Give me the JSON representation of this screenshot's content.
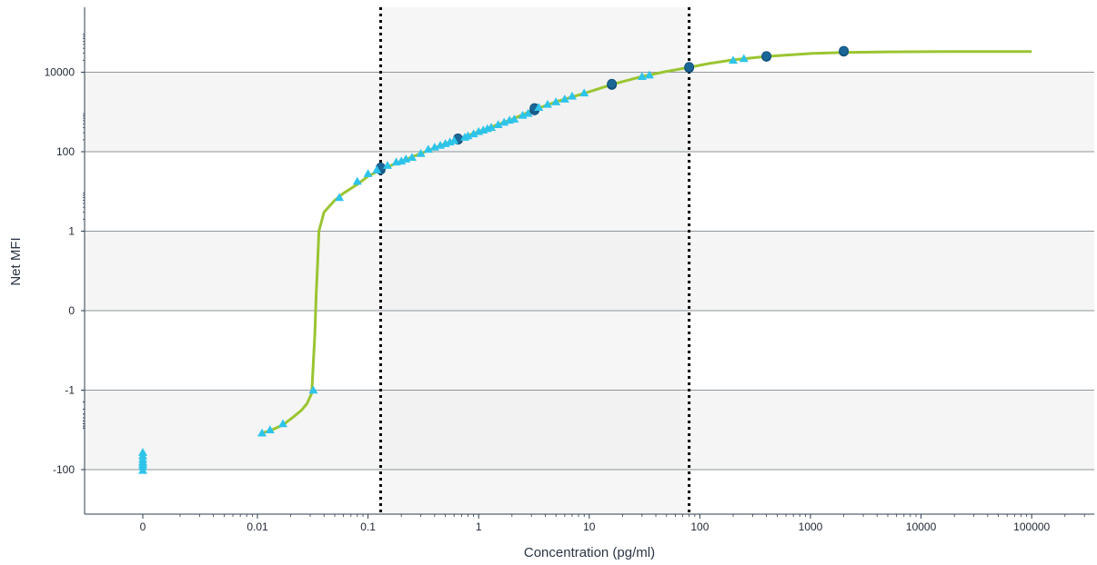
{
  "chart_data": {
    "type": "scatter",
    "title": "",
    "xlabel": "Concentration (pg/ml)",
    "ylabel": "Net MFI",
    "x_scale": "log",
    "y_scale": "symmetric-log",
    "x_tick_labels": [
      "0",
      "0.01",
      "0.1",
      "1",
      "10",
      "100",
      "1000",
      "10000",
      "100000"
    ],
    "y_tick_labels": [
      "10000",
      "100",
      "1",
      "0",
      "-1",
      "-100"
    ],
    "grid": "horizontal",
    "legend": "none",
    "colors": {
      "curve": "#9ac531",
      "samples": "#2ec4ea",
      "standards": "#1a6697",
      "limit_lines": "#000000",
      "band_dark": "#f5f5f5",
      "quant_region": "#efefef"
    },
    "limits_of_quantification": {
      "lower": 0.13,
      "upper": 80
    },
    "series": [
      {
        "marker": "circle",
        "points": [
          [
            0.13,
            35
          ],
          [
            0.13,
            40
          ],
          [
            0.65,
            200
          ],
          [
            0.65,
            215
          ],
          [
            3.2,
            1100
          ],
          [
            3.2,
            1250
          ],
          [
            16,
            4800
          ],
          [
            16,
            5100
          ],
          [
            80,
            12800
          ],
          [
            80,
            13600
          ],
          [
            400,
            24500
          ],
          [
            400,
            25500
          ],
          [
            2000,
            33000
          ],
          [
            2000,
            34500
          ]
        ]
      },
      {
        "marker": "triangle",
        "points": [
          [
            0.011,
            -12
          ],
          [
            0.013,
            -10
          ],
          [
            0.017,
            -7
          ],
          [
            0.032,
            -1
          ],
          [
            0.055,
            7
          ],
          [
            0.08,
            18
          ],
          [
            0.1,
            28
          ],
          [
            0.12,
            35
          ],
          [
            0.15,
            45
          ],
          [
            0.18,
            55
          ],
          [
            0.2,
            58
          ],
          [
            0.22,
            65
          ],
          [
            0.25,
            72
          ],
          [
            0.3,
            90
          ],
          [
            0.35,
            115
          ],
          [
            0.4,
            130
          ],
          [
            0.45,
            145
          ],
          [
            0.5,
            160
          ],
          [
            0.55,
            175
          ],
          [
            0.6,
            190
          ],
          [
            0.75,
            230
          ],
          [
            0.8,
            250
          ],
          [
            0.9,
            280
          ],
          [
            1.0,
            320
          ],
          [
            1.1,
            350
          ],
          [
            1.2,
            380
          ],
          [
            1.3,
            410
          ],
          [
            1.5,
            480
          ],
          [
            1.7,
            550
          ],
          [
            1.9,
            620
          ],
          [
            2.1,
            660
          ],
          [
            2.5,
            820
          ],
          [
            2.8,
            920
          ],
          [
            3.5,
            1300
          ],
          [
            4.2,
            1550
          ],
          [
            5,
            1800
          ],
          [
            6,
            2100
          ],
          [
            7,
            2500
          ],
          [
            9,
            3000
          ],
          [
            30,
            7800
          ],
          [
            35,
            8500
          ],
          [
            200,
            20000
          ],
          [
            250,
            22000
          ]
        ]
      },
      {
        "marker": "triangle",
        "x_label": "0",
        "points": [
          [
            0,
            -37
          ],
          [
            0,
            -45
          ],
          [
            0,
            -55
          ],
          [
            0,
            -65
          ],
          [
            0,
            -75
          ],
          [
            0,
            -85
          ],
          [
            0,
            -105
          ]
        ]
      }
    ],
    "fit_curve": [
      [
        0.011,
        -12
      ],
      [
        0.013,
        -10.5
      ],
      [
        0.017,
        -7.5
      ],
      [
        0.021,
        -4.8
      ],
      [
        0.025,
        -3.2
      ],
      [
        0.028,
        -2.2
      ],
      [
        0.031,
        -1.2
      ],
      [
        0.033,
        -0.3
      ],
      [
        0.034,
        0.2
      ],
      [
        0.035,
        0.6
      ],
      [
        0.036,
        1.0
      ],
      [
        0.04,
        3
      ],
      [
        0.05,
        6
      ],
      [
        0.06,
        9
      ],
      [
        0.08,
        15
      ],
      [
        0.1,
        24
      ],
      [
        0.13,
        35
      ],
      [
        0.2,
        58
      ],
      [
        0.3,
        90
      ],
      [
        0.5,
        160
      ],
      [
        1,
        320
      ],
      [
        2,
        650
      ],
      [
        3.2,
        1150
      ],
      [
        5,
        1800
      ],
      [
        10,
        3200
      ],
      [
        16,
        4900
      ],
      [
        30,
        7800
      ],
      [
        50,
        10500
      ],
      [
        80,
        13200
      ],
      [
        120,
        16500
      ],
      [
        200,
        20500
      ],
      [
        400,
        25000
      ],
      [
        1000,
        29500
      ],
      [
        2000,
        31500
      ],
      [
        5000,
        32500
      ],
      [
        20000,
        33000
      ],
      [
        100000,
        33000
      ]
    ]
  }
}
